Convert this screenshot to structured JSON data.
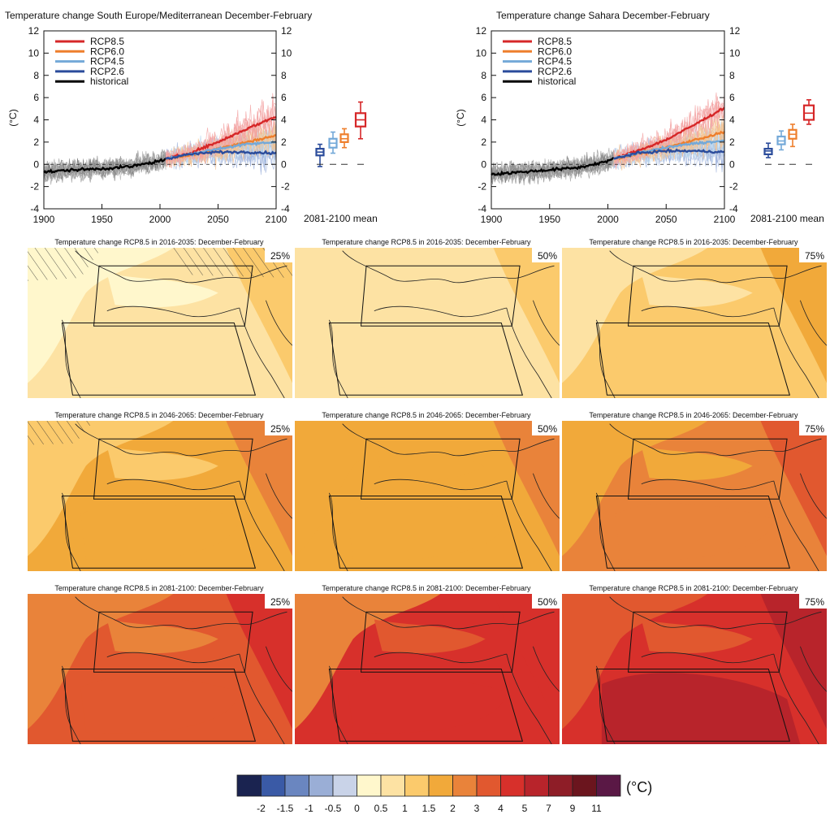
{
  "charts": {
    "ts_left_title": "Temperature change South Europe/Mediterranean December-February",
    "ts_right_title": "Temperature change Sahara December-February",
    "unit_label": "(°C)",
    "box_label": "2081-2100 mean",
    "legend": [
      "RCP8.5",
      "RCP6.0",
      "RCP4.5",
      "RCP2.6",
      "historical"
    ],
    "map_titles": {
      "p1": "Temperature change RCP8.5 in 2016-2035: December-February",
      "p2": "Temperature change RCP8.5 in 2046-2065: December-February",
      "p3": "Temperature change RCP8.5 in 2081-2100: December-February"
    },
    "percentiles": [
      "25%",
      "50%",
      "75%"
    ],
    "colorbar_unit": "(°C)"
  },
  "chart_data": [
    {
      "type": "line",
      "title": "Temperature change South Europe/Mediterranean December-February",
      "ylabel": "(°C)",
      "xlim": [
        1900,
        2100
      ],
      "ylim": [
        -4,
        12
      ],
      "x_ticks": [
        1900,
        1950,
        2000,
        2050,
        2100
      ],
      "y_ticks": [
        -4,
        -2,
        0,
        2,
        4,
        6,
        8,
        10,
        12
      ],
      "legend_position": "top-left",
      "series": [
        {
          "name": "historical",
          "color": "#000000",
          "x": [
            1900,
            1925,
            1950,
            1975,
            2000,
            2005
          ],
          "y": [
            -0.7,
            -0.5,
            -0.4,
            -0.2,
            0.3,
            0.5
          ]
        },
        {
          "name": "RCP8.5",
          "color": "#d62728",
          "x": [
            2005,
            2025,
            2050,
            2075,
            2100
          ],
          "y": [
            0.5,
            1.0,
            2.0,
            3.2,
            4.3
          ]
        },
        {
          "name": "RCP6.0",
          "color": "#ee7f2d",
          "x": [
            2005,
            2025,
            2050,
            2075,
            2100
          ],
          "y": [
            0.5,
            0.8,
            1.4,
            2.0,
            2.6
          ]
        },
        {
          "name": "RCP4.5",
          "color": "#74a9d8",
          "x": [
            2005,
            2025,
            2050,
            2075,
            2100
          ],
          "y": [
            0.5,
            0.9,
            1.4,
            1.8,
            2.0
          ]
        },
        {
          "name": "RCP2.6",
          "color": "#2b4c9b",
          "x": [
            2005,
            2025,
            2050,
            2075,
            2100
          ],
          "y": [
            0.5,
            0.9,
            1.1,
            1.1,
            1.0
          ]
        }
      ],
      "boxplots_2081_2100_mean": [
        {
          "name": "RCP2.6",
          "color": "#2b4c9b",
          "min": -0.2,
          "q1": 0.8,
          "median": 1.1,
          "q3": 1.4,
          "max": 1.8
        },
        {
          "name": "RCP4.5",
          "color": "#74a9d8",
          "min": 1.0,
          "q1": 1.5,
          "median": 1.9,
          "q3": 2.3,
          "max": 2.9
        },
        {
          "name": "RCP6.0",
          "color": "#ee7f2d",
          "min": 1.5,
          "q1": 2.0,
          "median": 2.3,
          "q3": 2.7,
          "max": 3.2
        },
        {
          "name": "RCP8.5",
          "color": "#d62728",
          "min": 2.3,
          "q1": 3.4,
          "median": 4.0,
          "q3": 4.6,
          "max": 5.6
        }
      ]
    },
    {
      "type": "line",
      "title": "Temperature change Sahara December-February",
      "ylabel": "(°C)",
      "xlim": [
        1900,
        2100
      ],
      "ylim": [
        -4,
        12
      ],
      "x_ticks": [
        1900,
        1950,
        2000,
        2050,
        2100
      ],
      "y_ticks": [
        -4,
        -2,
        0,
        2,
        4,
        6,
        8,
        10,
        12
      ],
      "legend_position": "top-left",
      "series": [
        {
          "name": "historical",
          "color": "#000000",
          "x": [
            1900,
            1925,
            1950,
            1975,
            2000,
            2005
          ],
          "y": [
            -0.9,
            -0.7,
            -0.5,
            -0.3,
            0.3,
            0.5
          ]
        },
        {
          "name": "RCP8.5",
          "color": "#d62728",
          "x": [
            2005,
            2025,
            2050,
            2075,
            2100
          ],
          "y": [
            0.5,
            1.2,
            2.2,
            3.6,
            5.1
          ]
        },
        {
          "name": "RCP6.0",
          "color": "#ee7f2d",
          "x": [
            2005,
            2025,
            2050,
            2075,
            2100
          ],
          "y": [
            0.5,
            0.9,
            1.5,
            2.2,
            2.9
          ]
        },
        {
          "name": "RCP4.5",
          "color": "#74a9d8",
          "x": [
            2005,
            2025,
            2050,
            2075,
            2100
          ],
          "y": [
            0.5,
            1.0,
            1.5,
            1.9,
            2.1
          ]
        },
        {
          "name": "RCP2.6",
          "color": "#2b4c9b",
          "x": [
            2005,
            2025,
            2050,
            2075,
            2100
          ],
          "y": [
            0.5,
            1.0,
            1.2,
            1.2,
            1.1
          ]
        }
      ],
      "boxplots_2081_2100_mean": [
        {
          "name": "RCP2.6",
          "color": "#2b4c9b",
          "min": 0.6,
          "q1": 0.9,
          "median": 1.2,
          "q3": 1.4,
          "max": 1.9
        },
        {
          "name": "RCP4.5",
          "color": "#74a9d8",
          "min": 1.3,
          "q1": 1.8,
          "median": 2.1,
          "q3": 2.5,
          "max": 3.0
        },
        {
          "name": "RCP6.0",
          "color": "#ee7f2d",
          "min": 1.6,
          "q1": 2.3,
          "median": 2.7,
          "q3": 3.1,
          "max": 3.6
        },
        {
          "name": "RCP8.5",
          "color": "#d62728",
          "min": 3.6,
          "q1": 4.0,
          "median": 4.6,
          "q3": 5.3,
          "max": 5.8
        }
      ]
    },
    {
      "type": "heatmap",
      "colorbar": {
        "unit": "(°C)",
        "labels": [
          "-2",
          "-1.5",
          "-1",
          "-0.5",
          "0",
          "0.5",
          "1",
          "1.5",
          "2",
          "3",
          "4",
          "5",
          "7",
          "9",
          "11"
        ],
        "colors": [
          "#1a2350",
          "#3a5aa6",
          "#6a86c0",
          "#9aaed6",
          "#c9d3e8",
          "#fff7cc",
          "#fde2a3",
          "#fbca6c",
          "#f1a93a",
          "#e9833a",
          "#e1582f",
          "#d7302b",
          "#b8242b",
          "#8e1d27",
          "#6b151e",
          "#5a1845"
        ]
      },
      "maps": [
        {
          "period": "2016-2035",
          "percentile": "25%"
        },
        {
          "period": "2016-2035",
          "percentile": "50%"
        },
        {
          "period": "2016-2035",
          "percentile": "75%"
        },
        {
          "period": "2046-2065",
          "percentile": "25%"
        },
        {
          "period": "2046-2065",
          "percentile": "50%"
        },
        {
          "period": "2046-2065",
          "percentile": "75%"
        },
        {
          "period": "2081-2100",
          "percentile": "25%"
        },
        {
          "period": "2081-2100",
          "percentile": "50%"
        },
        {
          "period": "2081-2100",
          "percentile": "75%"
        }
      ]
    }
  ]
}
